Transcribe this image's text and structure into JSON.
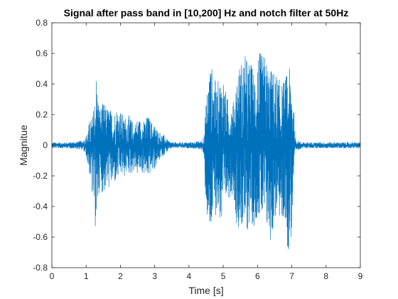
{
  "chart_data": {
    "type": "line",
    "title": "Signal after pass band in [10,200] Hz and notch filter at 50Hz",
    "xlabel": "Time [s]",
    "ylabel": "Magnitue",
    "xlim": [
      0,
      9
    ],
    "ylim": [
      -0.8,
      0.8
    ],
    "xticks": [
      0,
      1,
      2,
      3,
      4,
      5,
      6,
      7,
      8,
      9
    ],
    "xtick_labels": [
      "0",
      "1",
      "2",
      "3",
      "4",
      "5",
      "6",
      "7",
      "8",
      "9"
    ],
    "yticks": [
      -0.8,
      -0.6,
      -0.4,
      -0.2,
      0,
      0.2,
      0.4,
      0.6,
      0.8
    ],
    "ytick_labels": [
      "-0.8",
      "-0.6",
      "-0.4",
      "-0.2",
      "0",
      "0.2",
      "0.4",
      "0.6",
      "0.8"
    ],
    "grid": false,
    "line_color": "#0072BD",
    "series": [
      {
        "x": [
          0.0,
          0.5,
          0.9,
          1.0,
          1.1,
          1.2,
          1.3,
          1.35,
          1.4,
          1.5,
          1.6,
          1.7,
          1.8,
          1.9,
          2.0,
          2.1,
          2.2,
          2.3,
          2.4,
          2.5,
          2.6,
          2.7,
          2.8,
          2.9,
          3.0,
          3.1,
          3.2,
          3.3,
          3.4,
          3.5,
          4.0,
          4.4,
          4.5,
          4.6,
          4.7,
          4.8,
          4.9,
          5.0,
          5.1,
          5.2,
          5.3,
          5.4,
          5.5,
          5.6,
          5.7,
          5.8,
          5.9,
          6.0,
          6.1,
          6.2,
          6.3,
          6.4,
          6.5,
          6.6,
          6.7,
          6.8,
          6.9,
          7.0,
          7.05,
          7.1,
          7.2,
          7.3,
          7.5,
          8.0,
          9.0
        ],
        "y_max": [
          0.02,
          0.02,
          0.03,
          0.06,
          0.16,
          0.2,
          0.5,
          0.33,
          0.26,
          0.28,
          0.26,
          0.24,
          0.22,
          0.26,
          0.24,
          0.18,
          0.21,
          0.18,
          0.14,
          0.18,
          0.17,
          0.16,
          0.2,
          0.16,
          0.14,
          0.1,
          0.08,
          0.06,
          0.03,
          0.02,
          0.02,
          0.03,
          0.28,
          0.56,
          0.5,
          0.4,
          0.45,
          0.48,
          0.32,
          0.3,
          0.28,
          0.5,
          0.55,
          0.6,
          0.58,
          0.55,
          0.5,
          0.65,
          0.6,
          0.6,
          0.55,
          0.5,
          0.5,
          0.45,
          0.4,
          0.45,
          0.5,
          0.5,
          0.3,
          0.05,
          0.03,
          0.02,
          0.02,
          0.02,
          0.02
        ],
        "y_min": [
          -0.02,
          -0.02,
          -0.03,
          -0.08,
          -0.2,
          -0.4,
          -0.62,
          -0.35,
          -0.3,
          -0.32,
          -0.3,
          -0.28,
          -0.26,
          -0.25,
          -0.2,
          -0.22,
          -0.18,
          -0.2,
          -0.16,
          -0.2,
          -0.18,
          -0.2,
          -0.22,
          -0.18,
          -0.16,
          -0.12,
          -0.08,
          -0.06,
          -0.04,
          -0.02,
          -0.02,
          -0.03,
          -0.4,
          -0.7,
          -0.5,
          -0.45,
          -0.5,
          -0.65,
          -0.35,
          -0.34,
          -0.32,
          -0.55,
          -0.52,
          -0.6,
          -0.58,
          -0.5,
          -0.55,
          -0.45,
          -0.5,
          -0.55,
          -0.6,
          -0.65,
          -0.5,
          -0.45,
          -0.55,
          -0.5,
          -0.72,
          -0.6,
          -0.3,
          -0.05,
          -0.03,
          -0.02,
          -0.02,
          -0.02,
          -0.02
        ]
      }
    ]
  }
}
